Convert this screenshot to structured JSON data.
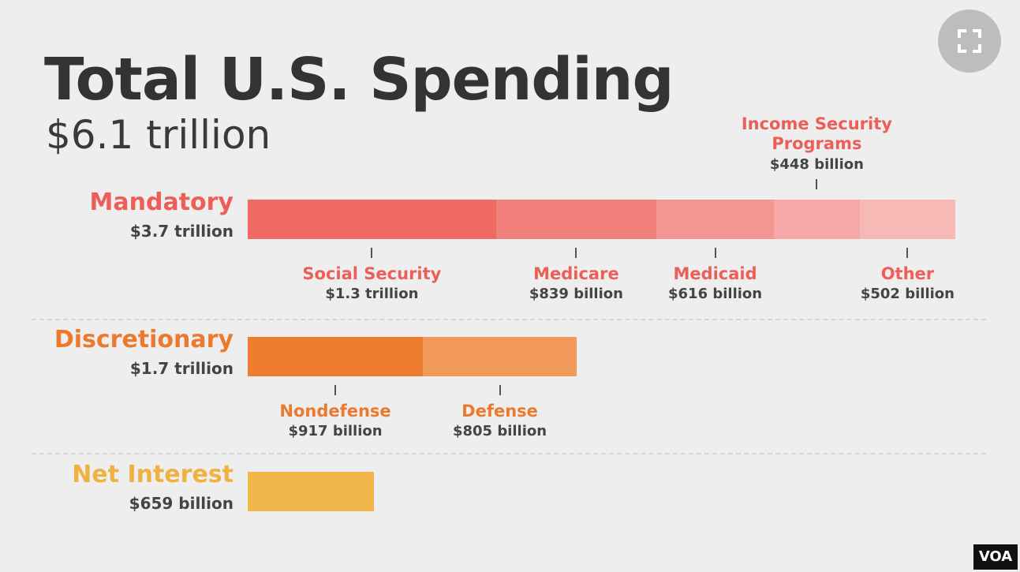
{
  "chart_data": {
    "type": "stacked-bar",
    "title": "Total U.S. Spending",
    "subtitle": "$6.1 trillion",
    "groups": [
      {
        "name": "Mandatory",
        "total": 3700,
        "total_label": "$3.7 trillion",
        "color": "#ec5f58",
        "segments": [
          {
            "name": "Social Security",
            "value": 1300,
            "value_label": "$1.3 trillion",
            "color": "#ef6a63",
            "label_position": "below"
          },
          {
            "name": "Medicare",
            "value": 839,
            "value_label": "$839 billion",
            "color": "#f2807a",
            "label_position": "below"
          },
          {
            "name": "Medicaid",
            "value": 616,
            "value_label": "$616 billion",
            "color": "#f39591",
            "label_position": "below"
          },
          {
            "name": "Income Security Programs",
            "value": 448,
            "value_label": "$448 billion",
            "color": "#f5a8a5",
            "label_position": "above"
          },
          {
            "name": "Other",
            "value": 502,
            "value_label": "$502 billion",
            "color": "#f7b9b6",
            "label_position": "below"
          }
        ]
      },
      {
        "name": "Discretionary",
        "total": 1700,
        "total_label": "$1.7 trillion",
        "color": "#ec7a2e",
        "segments": [
          {
            "name": "Nondefense",
            "value": 917,
            "value_label": "$917 billion",
            "color": "#ee7d30",
            "label_position": "below"
          },
          {
            "name": "Defense",
            "value": 805,
            "value_label": "$805 billion",
            "color": "#f19a5a",
            "label_position": "below"
          }
        ]
      },
      {
        "name": "Net Interest",
        "total": 659,
        "total_label": "$659 billion",
        "color": "#efb241",
        "segments": [
          {
            "name": null,
            "value": 659,
            "value_label": null,
            "color": "#f2b74c",
            "label_position": "below"
          }
        ]
      }
    ]
  },
  "ui": {
    "badge": "VOA"
  }
}
